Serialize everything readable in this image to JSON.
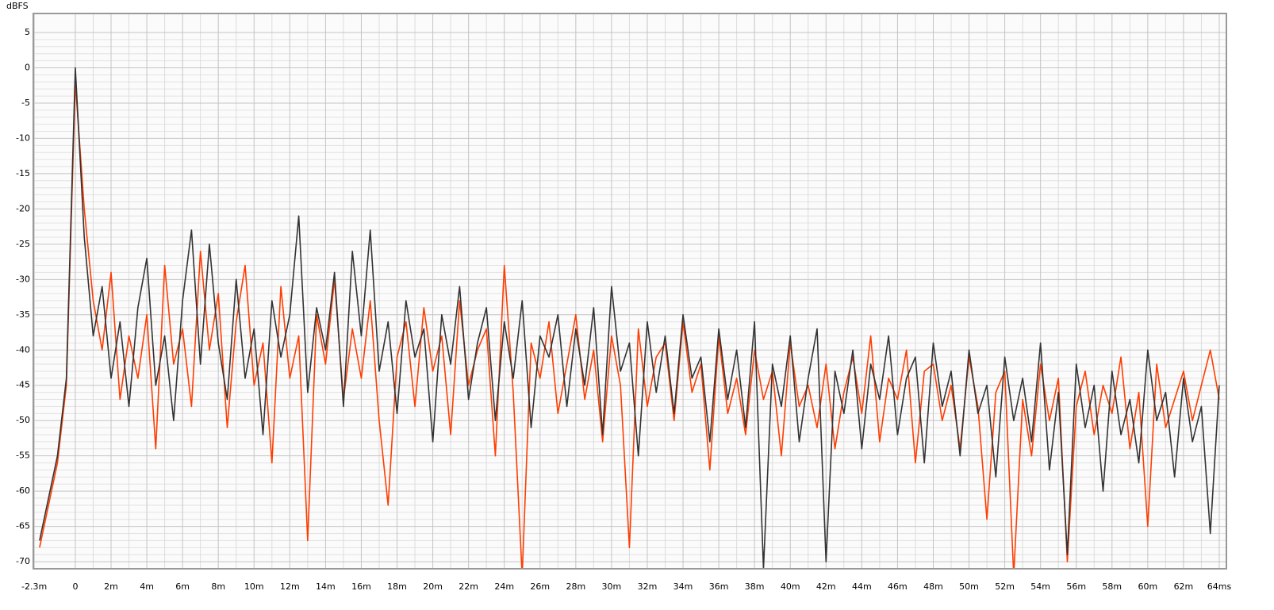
{
  "chart_data": {
    "type": "line",
    "y_label": "dBFS",
    "x": [
      -2,
      -1.5,
      -1,
      -0.5,
      0,
      0.5,
      1,
      1.5,
      2,
      2.5,
      3,
      3.5,
      4,
      4.5,
      5,
      5.5,
      6,
      6.5,
      7,
      7.5,
      8,
      8.5,
      9,
      9.5,
      10,
      10.5,
      11,
      11.5,
      12,
      12.5,
      13,
      13.5,
      14,
      14.5,
      15,
      15.5,
      16,
      16.5,
      17,
      17.5,
      18,
      18.5,
      19,
      19.5,
      20,
      20.5,
      21,
      21.5,
      22,
      22.5,
      23,
      23.5,
      24,
      24.5,
      25,
      25.5,
      26,
      26.5,
      27,
      27.5,
      28,
      28.5,
      29,
      29.5,
      30,
      30.5,
      31,
      31.5,
      32,
      32.5,
      33,
      33.5,
      34,
      34.5,
      35,
      35.5,
      36,
      36.5,
      37,
      37.5,
      38,
      38.5,
      39,
      39.5,
      40,
      40.5,
      41,
      41.5,
      42,
      42.5,
      43,
      43.5,
      44,
      44.5,
      45,
      45.5,
      46,
      46.5,
      47,
      47.5,
      48,
      48.5,
      49,
      49.5,
      50,
      50.5,
      51,
      51.5,
      52,
      52.5,
      53,
      53.5,
      54,
      54.5,
      55,
      55.5,
      56,
      56.5,
      57,
      57.5,
      58,
      58.5,
      59,
      59.5,
      60,
      60.5,
      61,
      61.5,
      62,
      62.5,
      63,
      63.5,
      64
    ],
    "series": [
      {
        "color": "#ff3d00",
        "values": [
          -68,
          -62,
          -56,
          -45,
          -2,
          -20,
          -33,
          -40,
          -29,
          -47,
          -38,
          -44,
          -35,
          -54,
          -28,
          -42,
          -37,
          -48,
          -26,
          -40,
          -32,
          -51,
          -36,
          -28,
          -45,
          -39,
          -56,
          -31,
          -44,
          -38,
          -67,
          -35,
          -42,
          -30,
          -47,
          -37,
          -44,
          -33,
          -50,
          -62,
          -41,
          -36,
          -48,
          -34,
          -43,
          -38,
          -52,
          -33,
          -45,
          -40,
          -37,
          -55,
          -28,
          -46,
          -72,
          -39,
          -44,
          -36,
          -49,
          -42,
          -35,
          -47,
          -40,
          -53,
          -38,
          -45,
          -68,
          -37,
          -48,
          -41,
          -39,
          -50,
          -36,
          -46,
          -42,
          -57,
          -38,
          -49,
          -44,
          -52,
          -40,
          -47,
          -43,
          -55,
          -39,
          -48,
          -45,
          -51,
          -42,
          -54,
          -46,
          -41,
          -49,
          -38,
          -53,
          -44,
          -47,
          -40,
          -56,
          -43,
          -42,
          -50,
          -45,
          -54,
          -41,
          -48,
          -64,
          -46,
          -43,
          -72,
          -47,
          -55,
          -42,
          -50,
          -44,
          -70,
          -48,
          -43,
          -52,
          -45,
          -49,
          -41,
          -54,
          -46,
          -65,
          -42,
          -51,
          -47,
          -43,
          -50,
          -45,
          -40,
          -47
        ]
      },
      {
        "color": "#333333",
        "values": [
          -67,
          -61,
          -55,
          -44,
          0,
          -24,
          -38,
          -31,
          -44,
          -36,
          -48,
          -34,
          -27,
          -45,
          -38,
          -50,
          -33,
          -23,
          -42,
          -25,
          -39,
          -47,
          -30,
          -44,
          -37,
          -52,
          -33,
          -41,
          -35,
          -21,
          -46,
          -34,
          -40,
          -29,
          -48,
          -26,
          -38,
          -23,
          -43,
          -36,
          -49,
          -33,
          -41,
          -37,
          -53,
          -35,
          -42,
          -31,
          -47,
          -39,
          -34,
          -50,
          -36,
          -44,
          -33,
          -51,
          -38,
          -41,
          -35,
          -48,
          -37,
          -45,
          -34,
          -52,
          -31,
          -43,
          -39,
          -55,
          -36,
          -46,
          -38,
          -49,
          -35,
          -44,
          -41,
          -53,
          -37,
          -47,
          -40,
          -51,
          -36,
          -71,
          -42,
          -48,
          -38,
          -53,
          -44,
          -37,
          -70,
          -43,
          -49,
          -40,
          -54,
          -42,
          -47,
          -38,
          -52,
          -44,
          -41,
          -56,
          -39,
          -48,
          -43,
          -55,
          -40,
          -49,
          -45,
          -58,
          -41,
          -50,
          -44,
          -53,
          -39,
          -57,
          -46,
          -69,
          -42,
          -51,
          -45,
          -60,
          -43,
          -52,
          -47,
          -56,
          -40,
          -50,
          -46,
          -58,
          -44,
          -53,
          -48,
          -66,
          -45
        ]
      }
    ],
    "xlim": [
      -2.35,
      64.4
    ],
    "ylim": [
      -71,
      7.7
    ],
    "xticks": [
      {
        "value": -2.3,
        "label": "-2.3m"
      },
      0,
      {
        "value": 2,
        "label": "2m"
      },
      {
        "value": 4,
        "label": "4m"
      },
      {
        "value": 6,
        "label": "6m"
      },
      {
        "value": 8,
        "label": "8m"
      },
      {
        "value": 10,
        "label": "10m"
      },
      {
        "value": 12,
        "label": "12m"
      },
      {
        "value": 14,
        "label": "14m"
      },
      {
        "value": 16,
        "label": "16m"
      },
      {
        "value": 18,
        "label": "18m"
      },
      {
        "value": 20,
        "label": "20m"
      },
      {
        "value": 22,
        "label": "22m"
      },
      {
        "value": 24,
        "label": "24m"
      },
      {
        "value": 26,
        "label": "26m"
      },
      {
        "value": 28,
        "label": "28m"
      },
      {
        "value": 30,
        "label": "30m"
      },
      {
        "value": 32,
        "label": "32m"
      },
      {
        "value": 34,
        "label": "34m"
      },
      {
        "value": 36,
        "label": "36m"
      },
      {
        "value": 38,
        "label": "38m"
      },
      {
        "value": 40,
        "label": "40m"
      },
      {
        "value": 42,
        "label": "42m"
      },
      {
        "value": 44,
        "label": "44m"
      },
      {
        "value": 46,
        "label": "46m"
      },
      {
        "value": 48,
        "label": "48m"
      },
      {
        "value": 50,
        "label": "50m"
      },
      {
        "value": 52,
        "label": "52m"
      },
      {
        "value": 54,
        "label": "54m"
      },
      {
        "value": 56,
        "label": "56m"
      },
      {
        "value": 58,
        "label": "58m"
      },
      {
        "value": 60,
        "label": "60m"
      },
      {
        "value": 62,
        "label": "62m"
      },
      {
        "value": 64,
        "label": "64ms"
      }
    ],
    "yticks": [
      5,
      0,
      -5,
      -10,
      -15,
      -20,
      -25,
      -30,
      -35,
      -40,
      -45,
      -50,
      -55,
      -60,
      -65,
      -70
    ],
    "grid": true
  }
}
